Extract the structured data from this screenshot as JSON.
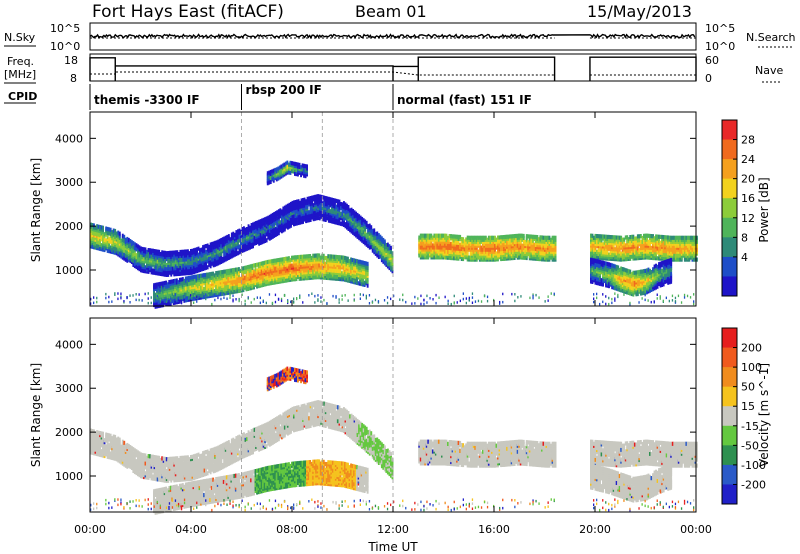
{
  "header": {
    "station": "Fort Hays East (fitACF)",
    "beam": "Beam 01",
    "date": "15/May/2013"
  },
  "top_panels": {
    "nsky_label": "N.Sky",
    "nsearch_label": "N.Search",
    "noise_ticks": [
      "10^5",
      "10^0"
    ],
    "noise_ticks_right": [
      "10^5",
      "10^0"
    ],
    "freq_label_1": "Freq.",
    "freq_label_2": "[MHz]",
    "freq_ticks": [
      "18",
      "8"
    ],
    "nave_label": "Nave",
    "nave_ticks": [
      "60",
      "0"
    ],
    "cpid_label": "CPID",
    "cpid_segments": [
      {
        "start": 0.0,
        "end": 6.0,
        "label": "themis -3300 IF"
      },
      {
        "start": 6.0,
        "end": 12.0,
        "label": "rbsp 200 IF"
      },
      {
        "start": 12.0,
        "end": 24.0,
        "label": "normal (fast) 151 IF"
      }
    ],
    "freq_step_mhz": [
      {
        "t0": 0.0,
        "t1": 1.0,
        "freq": 16.6
      },
      {
        "t0": 1.0,
        "t1": 12.0,
        "freq": 13.6
      },
      {
        "t0": 12.0,
        "t1": 13.0,
        "freq": 13.4
      },
      {
        "t0": 13.0,
        "t1": 18.4,
        "freq": 16.8
      },
      {
        "t0": 19.8,
        "t1": 24.0,
        "freq": 16.8
      }
    ],
    "data_gap": [
      18.4,
      19.8
    ]
  },
  "power_panel": {
    "ylabel": "Slant Range [km]",
    "yticks": [
      "4000",
      "3000",
      "2000",
      "1000"
    ],
    "colorbar_label": "Power [dB]",
    "colorbar_ticks": [
      "28",
      "24",
      "20",
      "16",
      "12",
      "8",
      "4"
    ],
    "colors": [
      "#1e14c8",
      "#1e4ec8",
      "#2e8a78",
      "#4fb45a",
      "#8ccc3a",
      "#f2d21e",
      "#f5a01e",
      "#f06a1e",
      "#e82828"
    ]
  },
  "velocity_panel": {
    "ylabel": "Slant Range [km]",
    "yticks": [
      "4000",
      "3000",
      "2000",
      "1000"
    ],
    "colorbar_label": "Velocity [m s^-1]",
    "colorbar_ticks": [
      "200",
      "100",
      "50",
      "15",
      "-15",
      "-50",
      "-100",
      "-200"
    ],
    "colors": [
      "#2020c8",
      "#2a5ac8",
      "#2e9050",
      "#64c840",
      "#c8c8c0",
      "#f5c31e",
      "#f08c1e",
      "#f05a1e",
      "#e61e1e"
    ]
  },
  "xaxis": {
    "label": "Time UT",
    "ticks": [
      "00:00",
      "04:00",
      "08:00",
      "12:00",
      "16:00",
      "20:00",
      "00:00"
    ]
  },
  "chart_data": {
    "type": "heatmap",
    "title": "Fort Hays East (fitACF) Beam 01 15/May/2013",
    "xlabel": "Time UT",
    "ylabel": "Slant Range [km]",
    "xlim_hours": [
      0,
      24
    ],
    "ylim_km": [
      180,
      4600
    ],
    "bands": [
      {
        "name": "ionospheric scatter (upper)",
        "t": [
          0.0,
          1.0,
          2.0,
          3.0,
          4.0,
          5.0,
          6.0,
          7.0,
          8.0,
          9.0,
          10.0,
          11.0,
          12.0
        ],
        "range_km": [
          1800,
          1650,
          1250,
          1150,
          1200,
          1400,
          1700,
          1950,
          2300,
          2450,
          2300,
          1800,
          1200
        ],
        "power_db": [
          20,
          18,
          14,
          12,
          10,
          10,
          10,
          8,
          8,
          8,
          10,
          14,
          18
        ]
      },
      {
        "name": "ionospheric scatter (lower)",
        "t": [
          2.5,
          4.0,
          6.0,
          7.0,
          8.0,
          9.0,
          10.0,
          11.0
        ],
        "range_km": [
          420,
          600,
          800,
          950,
          1050,
          1100,
          1050,
          900
        ],
        "power_db": [
          12,
          18,
          24,
          26,
          26,
          24,
          22,
          18
        ]
      },
      {
        "name": "ionospheric scatter (afternoon)",
        "t": [
          13.0,
          14.0,
          15.0,
          16.0,
          17.0,
          18.0,
          18.4
        ],
        "range_km": [
          1550,
          1550,
          1500,
          1500,
          1550,
          1500,
          1500
        ],
        "power_db": [
          24,
          26,
          24,
          26,
          24,
          24,
          22
        ]
      },
      {
        "name": "ionospheric scatter (evening)",
        "t": [
          19.8,
          21.0,
          22.0,
          23.0,
          24.0
        ],
        "range_km": [
          1550,
          1500,
          1550,
          1500,
          1500
        ],
        "power_db": [
          22,
          24,
          24,
          24,
          22
        ]
      },
      {
        "name": "evening lower band",
        "t": [
          19.8,
          20.5,
          21.0,
          21.5,
          22.0,
          22.5,
          23.0
        ],
        "range_km": [
          1000,
          900,
          800,
          700,
          750,
          900,
          1000
        ],
        "power_db": [
          12,
          16,
          22,
          24,
          20,
          14,
          10
        ]
      },
      {
        "name": "E-region patch",
        "t": [
          7.0,
          7.4,
          7.8,
          8.2,
          8.6
        ],
        "range_km": [
          3100,
          3200,
          3350,
          3300,
          3250
        ],
        "power_db": [
          10,
          16,
          18,
          12,
          8
        ]
      }
    ]
  }
}
